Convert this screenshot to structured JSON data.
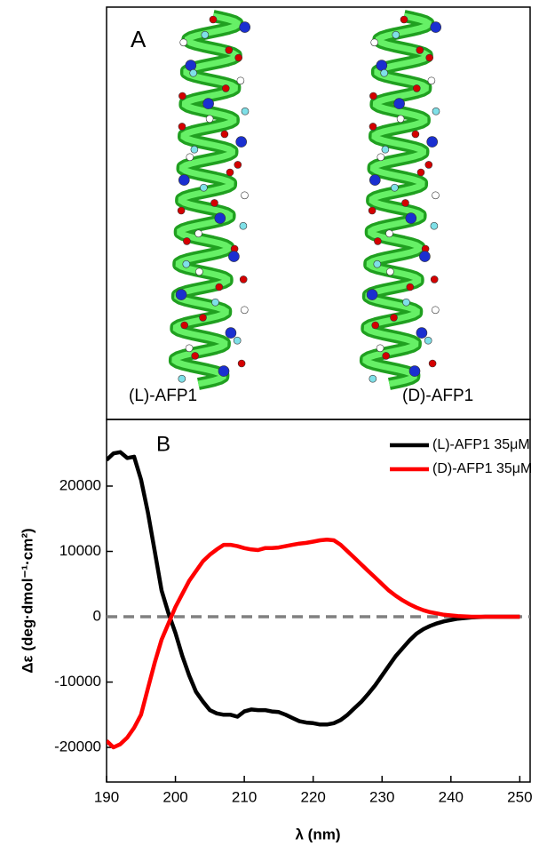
{
  "panel_a": {
    "label": "A",
    "left_caption": "(L)-AFP1",
    "right_caption": "(D)-AFP1"
  },
  "chart_data": {
    "type": "line",
    "panel_label": "B",
    "x_label": "λ (nm)",
    "y_label": "Δε (deg·dmol⁻¹·cm²)",
    "x": [
      190,
      191,
      192,
      193,
      194,
      195,
      196,
      197,
      198,
      199,
      200,
      201,
      202,
      203,
      204,
      205,
      206,
      207,
      208,
      209,
      210,
      211,
      212,
      213,
      214,
      215,
      216,
      217,
      218,
      219,
      220,
      221,
      222,
      223,
      224,
      225,
      226,
      227,
      228,
      229,
      230,
      231,
      232,
      233,
      234,
      235,
      236,
      237,
      238,
      239,
      240,
      241,
      242,
      243,
      244,
      245,
      246,
      247,
      248,
      249,
      250
    ],
    "series": [
      {
        "name": "(L)-AFP1 35μM",
        "color": "#000000",
        "values": [
          24000,
          25000,
          25200,
          24300,
          24500,
          21000,
          16000,
          10000,
          4000,
          500,
          -2500,
          -6000,
          -9000,
          -11500,
          -13000,
          -14300,
          -14800,
          -15000,
          -15000,
          -15300,
          -14500,
          -14200,
          -14300,
          -14300,
          -14500,
          -14600,
          -15000,
          -15500,
          -16000,
          -16200,
          -16300,
          -16500,
          -16500,
          -16300,
          -15800,
          -15000,
          -14000,
          -13000,
          -11800,
          -10500,
          -9000,
          -7500,
          -6000,
          -4800,
          -3600,
          -2600,
          -1900,
          -1400,
          -1000,
          -700,
          -500,
          -300,
          -200,
          -100,
          -50,
          0,
          0,
          0,
          0,
          0,
          0
        ]
      },
      {
        "name": "(D)-AFP1 35μM",
        "color": "#ff0000",
        "values": [
          -19000,
          -20000,
          -19500,
          -18500,
          -17000,
          -15000,
          -11000,
          -7000,
          -3500,
          -1000,
          1500,
          3500,
          5500,
          7000,
          8500,
          9500,
          10300,
          11000,
          11000,
          10800,
          10500,
          10300,
          10200,
          10500,
          10500,
          10600,
          10800,
          11000,
          11200,
          11300,
          11500,
          11700,
          11800,
          11700,
          11000,
          10000,
          9000,
          8000,
          7000,
          6000,
          5000,
          4000,
          3200,
          2500,
          1900,
          1400,
          1000,
          700,
          500,
          300,
          200,
          100,
          50,
          0,
          0,
          0,
          0,
          0,
          0,
          0,
          0
        ]
      }
    ],
    "xlim": [
      190,
      251.5
    ],
    "xticks": [
      190,
      200,
      210,
      220,
      230,
      240,
      250
    ],
    "ylim": [
      -25300,
      30200
    ],
    "yticks": [
      -20000,
      -10000,
      0,
      10000,
      20000
    ],
    "hlines": [
      {
        "y": 0,
        "color": "#808080",
        "dashed": true
      }
    ],
    "legend": "top-right"
  }
}
